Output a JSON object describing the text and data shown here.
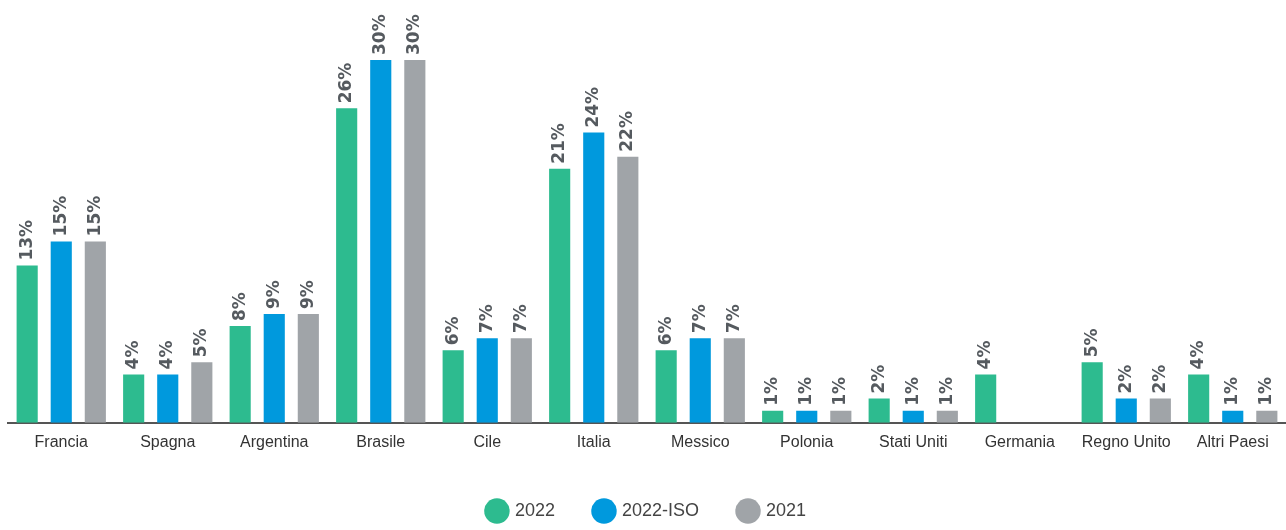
{
  "chart_data": {
    "type": "bar",
    "categories": [
      "Francia",
      "Spagna",
      "Argentina",
      "Brasile",
      "Cile",
      "Italia",
      "Messico",
      "Polonia",
      "Stati Uniti",
      "Germania",
      "Regno Unito",
      "Altri Paesi"
    ],
    "series": [
      {
        "name": "2022",
        "color": "#2dbb8f",
        "values": [
          13,
          4,
          8,
          26,
          6,
          21,
          6,
          1,
          2,
          4,
          5,
          4
        ],
        "value_labels": [
          "13%",
          "4%",
          "8%",
          "26%",
          "6%",
          "21%",
          "6%",
          "1%",
          "2%",
          "4%",
          "5%",
          "4%"
        ]
      },
      {
        "name": "2022-ISO",
        "color": "#0099dd",
        "values": [
          15,
          4,
          9,
          30,
          7,
          24,
          7,
          1,
          1,
          null,
          2,
          1
        ],
        "value_labels": [
          "15%",
          "4%",
          "9%",
          "30%",
          "7%",
          "24%",
          "7%",
          "1%",
          "1%",
          null,
          "2%",
          "1%"
        ]
      },
      {
        "name": "2021",
        "color": "#a0a4a8",
        "values": [
          15,
          5,
          9,
          30,
          7,
          22,
          7,
          1,
          1,
          null,
          2,
          1
        ],
        "value_labels": [
          "15%",
          "5%",
          "9%",
          "30%",
          "7%",
          "22%",
          "7%",
          "1%",
          "1%",
          null,
          "2%",
          "1%"
        ]
      }
    ],
    "legend": "bottom",
    "grid": false,
    "tick_labels": "x"
  }
}
